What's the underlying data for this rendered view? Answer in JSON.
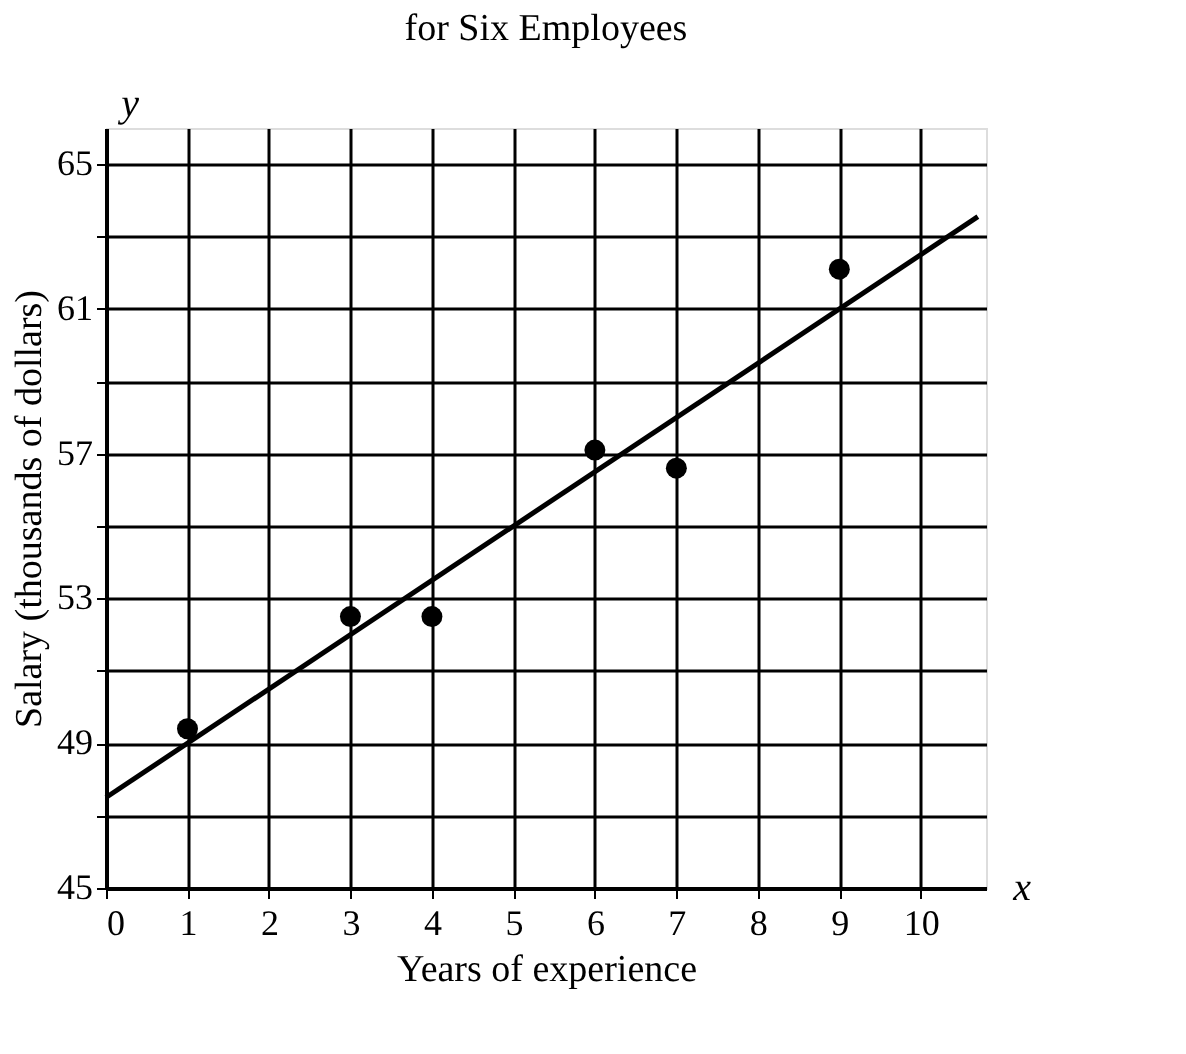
{
  "chart_data": {
    "type": "scatter",
    "title": "for Six Employees",
    "xlabel": "Years of experience",
    "ylabel": "Salary (thousands of dollars)",
    "x": [
      1,
      3,
      4,
      6,
      7,
      9
    ],
    "series": [
      {
        "color": "#000000",
        "values": [
          49.4,
          52.5,
          52.5,
          57.1,
          56.6,
          62.1
        ],
        "marker": "circle"
      },
      {
        "type": "line",
        "color": "#000000",
        "x": [
          0,
          10.7
        ],
        "values": [
          47.5,
          63.55
        ],
        "line_style": "solid"
      }
    ],
    "xlim": [
      0,
      10.8
    ],
    "xticks": [
      0,
      1,
      2,
      3,
      4,
      5,
      6,
      7,
      8,
      9,
      10
    ],
    "ylim": [
      45,
      66
    ],
    "yticks": [
      45,
      {
        "value": 47,
        "label": null
      },
      49,
      {
        "value": 51,
        "label": null
      },
      53,
      {
        "value": 55,
        "label": null
      },
      57,
      {
        "value": 59,
        "label": null
      },
      61,
      {
        "value": 63,
        "label": null
      },
      65
    ],
    "grid": true,
    "legend": false,
    "annotations": [
      "y",
      "x"
    ]
  }
}
